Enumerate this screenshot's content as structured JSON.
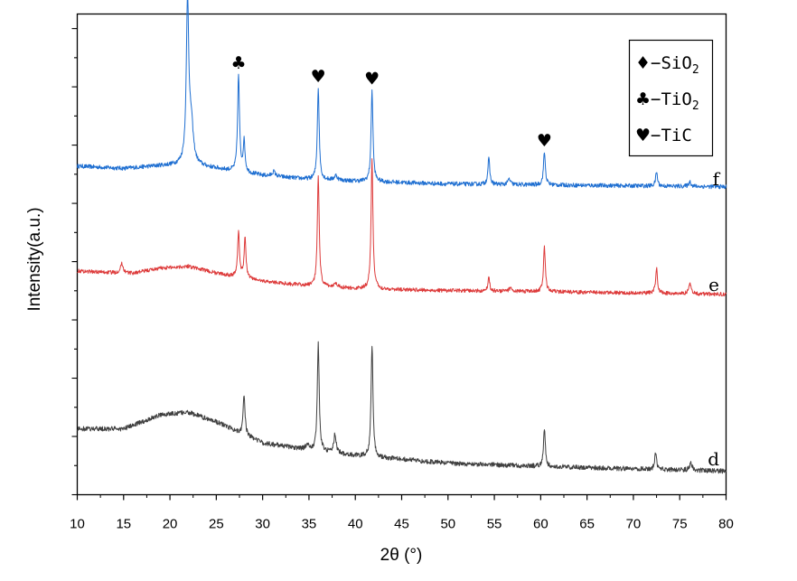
{
  "chart_data": {
    "type": "line",
    "xlabel": "2θ (°)",
    "ylabel": "Intensity(a.u.)",
    "xlim": [
      10,
      80
    ],
    "xticks": [
      10,
      15,
      20,
      25,
      30,
      35,
      40,
      45,
      50,
      55,
      60,
      65,
      70,
      75,
      80
    ],
    "grid": false,
    "legend": {
      "placement": "top-right",
      "entries": [
        {
          "symbol": "♦",
          "text": "−SiO",
          "sub": "2"
        },
        {
          "symbol": "♣",
          "text": "−TiO",
          "sub": "2"
        },
        {
          "symbol": "♥",
          "text": "−TiC",
          "sub": ""
        }
      ]
    },
    "markers": [
      {
        "symbol": "♦",
        "x": 21.9,
        "curve": "f"
      },
      {
        "symbol": "♣",
        "x": 27.4,
        "curve": "f"
      },
      {
        "symbol": "♥",
        "x": 36.0,
        "curve": "f"
      },
      {
        "symbol": "♥",
        "x": 41.8,
        "curve": "f"
      },
      {
        "symbol": "♥",
        "x": 60.4,
        "curve": "f"
      }
    ],
    "series": [
      {
        "name": "f",
        "color": "#1f6fd1",
        "baseline": [
          [
            10,
            0.6
          ],
          [
            15,
            0.55
          ],
          [
            19,
            0.61
          ],
          [
            22,
            0.63
          ],
          [
            25,
            0.55
          ],
          [
            30,
            0.4
          ],
          [
            35,
            0.32
          ],
          [
            40,
            0.28
          ],
          [
            50,
            0.22
          ],
          [
            60,
            0.2
          ],
          [
            70,
            0.18
          ],
          [
            80,
            0.16
          ]
        ],
        "peaks": [
          [
            21.9,
            3.45,
            0.16
          ],
          [
            22.3,
            0.8,
            0.25
          ],
          [
            27.4,
            2.05,
            0.12
          ],
          [
            28.0,
            0.65,
            0.12
          ],
          [
            36.0,
            1.95,
            0.12
          ],
          [
            41.8,
            1.95,
            0.12
          ],
          [
            54.4,
            0.55,
            0.12
          ],
          [
            56.6,
            0.12,
            0.15
          ],
          [
            60.4,
            0.7,
            0.12
          ],
          [
            72.5,
            0.3,
            0.12
          ],
          [
            76.1,
            0.1,
            0.15
          ],
          [
            31.2,
            0.1,
            0.2
          ],
          [
            37.9,
            0.1,
            0.2
          ]
        ],
        "noise": 0.045
      },
      {
        "name": "e",
        "color": "#dd3a3a",
        "baseline": [
          [
            10,
            0.6
          ],
          [
            14.8,
            0.55
          ],
          [
            16,
            0.55
          ],
          [
            19,
            0.66
          ],
          [
            22,
            0.7
          ],
          [
            25,
            0.55
          ],
          [
            30,
            0.38
          ],
          [
            35,
            0.28
          ],
          [
            40,
            0.22
          ],
          [
            50,
            0.18
          ],
          [
            60,
            0.16
          ],
          [
            70,
            0.13
          ],
          [
            80,
            0.1
          ]
        ],
        "peaks": [
          [
            14.8,
            0.2,
            0.2
          ],
          [
            27.4,
            0.95,
            0.12
          ],
          [
            28.1,
            0.85,
            0.12
          ],
          [
            36.0,
            2.35,
            0.12
          ],
          [
            41.8,
            2.75,
            0.12
          ],
          [
            54.4,
            0.28,
            0.12
          ],
          [
            60.4,
            0.95,
            0.12
          ],
          [
            72.5,
            0.55,
            0.12
          ],
          [
            76.1,
            0.22,
            0.15
          ],
          [
            56.8,
            0.08,
            0.2
          ],
          [
            37.9,
            0.1,
            0.2
          ]
        ],
        "noise": 0.04
      },
      {
        "name": "d",
        "color": "#3f3f3f",
        "baseline": [
          [
            10,
            0.95
          ],
          [
            15,
            0.95
          ],
          [
            19,
            1.25
          ],
          [
            22,
            1.3
          ],
          [
            25,
            1.1
          ],
          [
            30,
            0.65
          ],
          [
            35,
            0.5
          ],
          [
            40,
            0.38
          ],
          [
            50,
            0.22
          ],
          [
            60,
            0.15
          ],
          [
            70,
            0.1
          ],
          [
            80,
            0.05
          ]
        ],
        "peaks": [
          [
            28.0,
            0.85,
            0.12
          ],
          [
            36.0,
            2.3,
            0.12
          ],
          [
            41.8,
            2.4,
            0.12
          ],
          [
            37.8,
            0.4,
            0.15
          ],
          [
            60.4,
            0.8,
            0.12
          ],
          [
            72.4,
            0.35,
            0.12
          ],
          [
            76.2,
            0.18,
            0.15
          ],
          [
            34.8,
            0.1,
            0.2
          ]
        ],
        "noise": 0.05
      }
    ]
  }
}
